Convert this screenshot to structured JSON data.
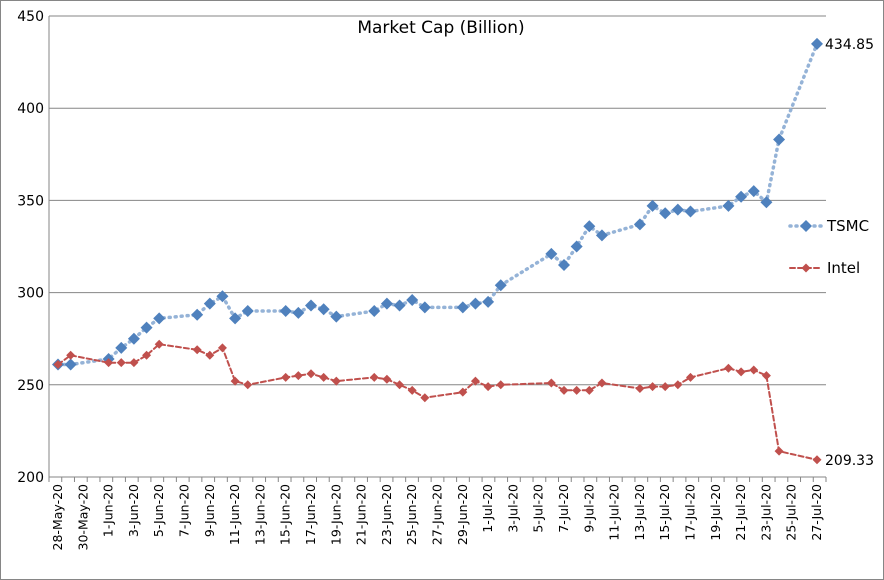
{
  "chart_data": {
    "type": "line",
    "title": "Market Cap (Billion)",
    "xlabel": "",
    "ylabel": "",
    "ylim": [
      200,
      450
    ],
    "yticks": [
      200,
      250,
      300,
      350,
      400,
      450
    ],
    "xlim": [
      "2020-05-28",
      "2020-07-27"
    ],
    "xtick_labels": [
      "28-May-20",
      "30-May-20",
      "1-Jun-20",
      "3-Jun-20",
      "5-Jun-20",
      "7-Jun-20",
      "9-Jun-20",
      "11-Jun-20",
      "13-Jun-20",
      "15-Jun-20",
      "17-Jun-20",
      "19-Jun-20",
      "21-Jun-20",
      "23-Jun-20",
      "25-Jun-20",
      "27-Jun-20",
      "29-Jun-20",
      "1-Jul-20",
      "3-Jul-20",
      "5-Jul-20",
      "7-Jul-20",
      "9-Jul-20",
      "11-Jul-20",
      "13-Jul-20",
      "15-Jul-20",
      "17-Jul-20",
      "19-Jul-20",
      "21-Jul-20",
      "23-Jul-20",
      "25-Jul-20",
      "27-Jul-20"
    ],
    "grid": "horizontal",
    "legend_position": "right",
    "series": [
      {
        "name": "TSMC",
        "color": "#4F81BD",
        "marker": "diamond",
        "line_style": "dotted",
        "end_label": "434.85",
        "points": [
          [
            "2020-05-28",
            261
          ],
          [
            "2020-05-29",
            261
          ],
          [
            "2020-06-01",
            264
          ],
          [
            "2020-06-02",
            270
          ],
          [
            "2020-06-03",
            275
          ],
          [
            "2020-06-04",
            281
          ],
          [
            "2020-06-05",
            286
          ],
          [
            "2020-06-08",
            288
          ],
          [
            "2020-06-09",
            294
          ],
          [
            "2020-06-10",
            298
          ],
          [
            "2020-06-11",
            286
          ],
          [
            "2020-06-12",
            290
          ],
          [
            "2020-06-15",
            290
          ],
          [
            "2020-06-16",
            289
          ],
          [
            "2020-06-17",
            293
          ],
          [
            "2020-06-18",
            291
          ],
          [
            "2020-06-19",
            287
          ],
          [
            "2020-06-22",
            290
          ],
          [
            "2020-06-23",
            294
          ],
          [
            "2020-06-24",
            293
          ],
          [
            "2020-06-25",
            296
          ],
          [
            "2020-06-26",
            292
          ],
          [
            "2020-06-29",
            292
          ],
          [
            "2020-06-30",
            294
          ],
          [
            "2020-07-01",
            295
          ],
          [
            "2020-07-02",
            304
          ],
          [
            "2020-07-06",
            321
          ],
          [
            "2020-07-07",
            315
          ],
          [
            "2020-07-08",
            325
          ],
          [
            "2020-07-09",
            336
          ],
          [
            "2020-07-10",
            331
          ],
          [
            "2020-07-13",
            337
          ],
          [
            "2020-07-14",
            347
          ],
          [
            "2020-07-15",
            343
          ],
          [
            "2020-07-16",
            345
          ],
          [
            "2020-07-17",
            344
          ],
          [
            "2020-07-20",
            347
          ],
          [
            "2020-07-21",
            352
          ],
          [
            "2020-07-22",
            355
          ],
          [
            "2020-07-23",
            349
          ],
          [
            "2020-07-24",
            383
          ],
          [
            "2020-07-27",
            434.85
          ]
        ]
      },
      {
        "name": "Intel",
        "color": "#C0504D",
        "marker": "diamond",
        "line_style": "dashed",
        "end_label": "209.33",
        "points": [
          [
            "2020-05-28",
            261
          ],
          [
            "2020-05-29",
            266
          ],
          [
            "2020-06-01",
            262
          ],
          [
            "2020-06-02",
            262
          ],
          [
            "2020-06-03",
            262
          ],
          [
            "2020-06-04",
            266
          ],
          [
            "2020-06-05",
            272
          ],
          [
            "2020-06-08",
            269
          ],
          [
            "2020-06-09",
            266
          ],
          [
            "2020-06-10",
            270
          ],
          [
            "2020-06-11",
            252
          ],
          [
            "2020-06-12",
            250
          ],
          [
            "2020-06-15",
            254
          ],
          [
            "2020-06-16",
            255
          ],
          [
            "2020-06-17",
            256
          ],
          [
            "2020-06-18",
            254
          ],
          [
            "2020-06-19",
            252
          ],
          [
            "2020-06-22",
            254
          ],
          [
            "2020-06-23",
            253
          ],
          [
            "2020-06-24",
            250
          ],
          [
            "2020-06-25",
            247
          ],
          [
            "2020-06-26",
            243
          ],
          [
            "2020-06-29",
            246
          ],
          [
            "2020-06-30",
            252
          ],
          [
            "2020-07-01",
            249
          ],
          [
            "2020-07-02",
            250
          ],
          [
            "2020-07-06",
            251
          ],
          [
            "2020-07-07",
            247
          ],
          [
            "2020-07-08",
            247
          ],
          [
            "2020-07-09",
            247
          ],
          [
            "2020-07-10",
            251
          ],
          [
            "2020-07-13",
            248
          ],
          [
            "2020-07-14",
            249
          ],
          [
            "2020-07-15",
            249
          ],
          [
            "2020-07-16",
            250
          ],
          [
            "2020-07-17",
            254
          ],
          [
            "2020-07-20",
            259
          ],
          [
            "2020-07-21",
            257
          ],
          [
            "2020-07-22",
            258
          ],
          [
            "2020-07-23",
            255
          ],
          [
            "2020-07-24",
            214
          ],
          [
            "2020-07-27",
            209.33
          ]
        ]
      }
    ]
  }
}
